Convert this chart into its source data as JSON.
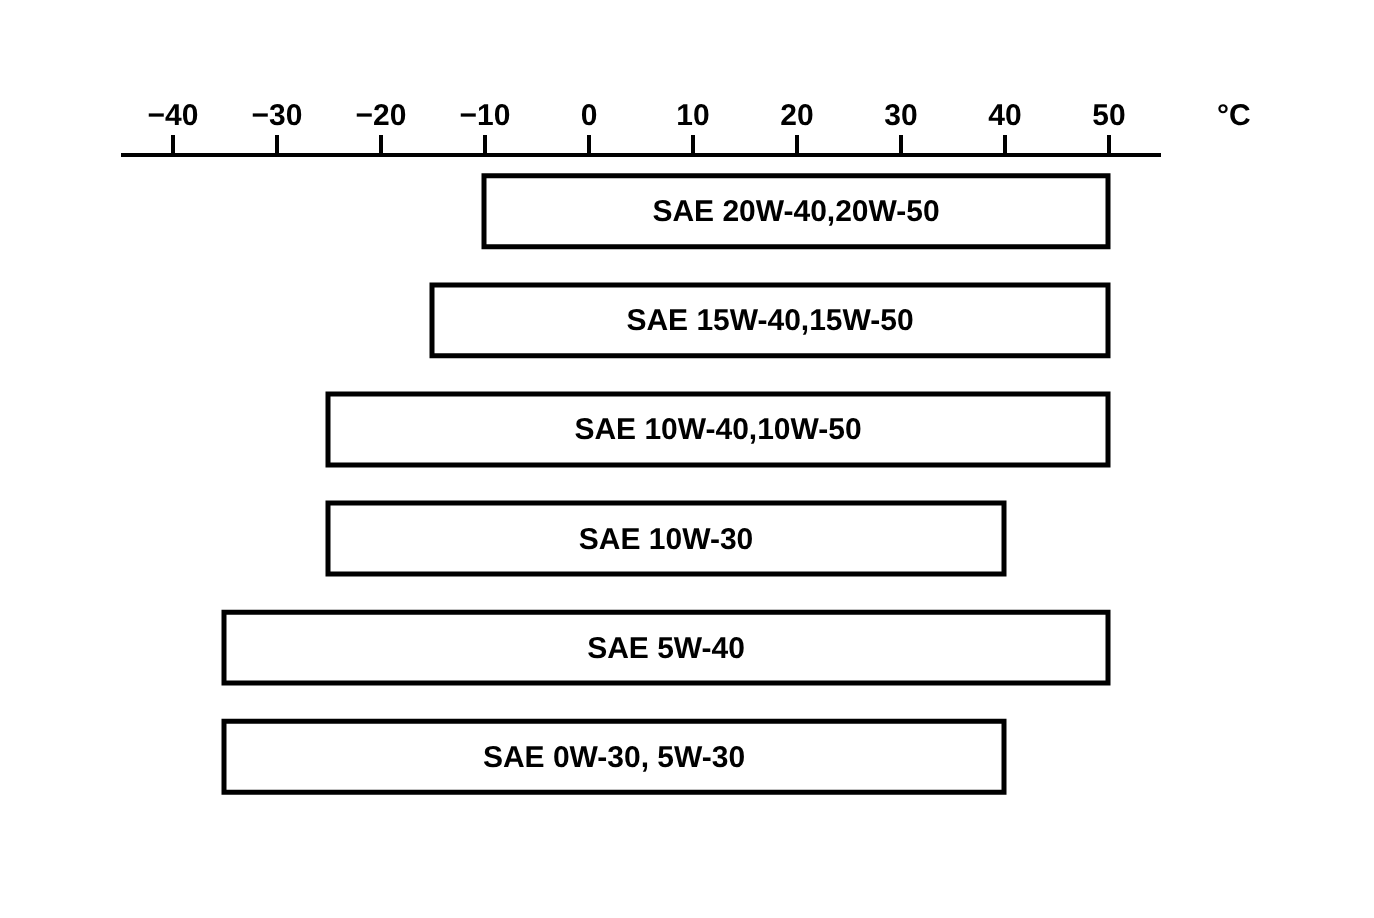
{
  "chart_data": {
    "type": "bar",
    "orientation": "horizontal",
    "xlabel": "°C",
    "categories": [
      "SAE  20W-40,20W-50",
      "SAE  15W-40,15W-50",
      "SAE  10W-40,10W-50",
      "SAE  10W-30",
      "SAE  5W-40",
      "SAE  0W-30,  5W-30"
    ],
    "base": [
      -10,
      -15,
      -25,
      -25,
      -35,
      -35
    ],
    "values": [
      60,
      65,
      75,
      65,
      85,
      75
    ],
    "color": "#ffffff",
    "xlim": [
      -45,
      55
    ],
    "xticks": [
      -40,
      -30,
      -20,
      -10,
      0,
      10,
      20,
      30,
      40,
      50
    ],
    "tick_labels": "x",
    "grid": false
  }
}
